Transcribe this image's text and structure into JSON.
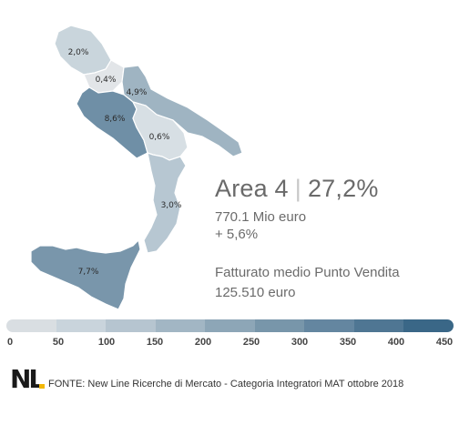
{
  "area": {
    "name": "Area 4",
    "share": "27,2%"
  },
  "revenue": "770.1 Mio euro",
  "growth": "+ 5,6%",
  "avg_label": "Fatturato medio Punto Vendita",
  "avg_value": "125.510 euro",
  "regions": [
    {
      "label": "2,0%",
      "color": "#c9d5dc"
    },
    {
      "label": "0,4%",
      "color": "#e2e5e8"
    },
    {
      "label": "4,9%",
      "color": "#9fb4c2"
    },
    {
      "label": "8,6%",
      "color": "#6f8fa6"
    },
    {
      "label": "0,6%",
      "color": "#d7dfe4"
    },
    {
      "label": "3,0%",
      "color": "#b7c7d2"
    },
    {
      "label": "7,7%",
      "color": "#7996ab"
    }
  ],
  "legend": {
    "ticks": [
      "0",
      "50",
      "100",
      "150",
      "200",
      "250",
      "300",
      "350",
      "400",
      "450"
    ],
    "colors": [
      "#d9dee2",
      "#c9d4dc",
      "#b6c5d0",
      "#a2b6c4",
      "#8da6b7",
      "#7896aa",
      "#6486a0",
      "#4f7693",
      "#3a6787"
    ]
  },
  "logo": "NL",
  "source": "FONTE: New Line Ricerche di Mercato - Categoria Integratori MAT ottobre 2018"
}
